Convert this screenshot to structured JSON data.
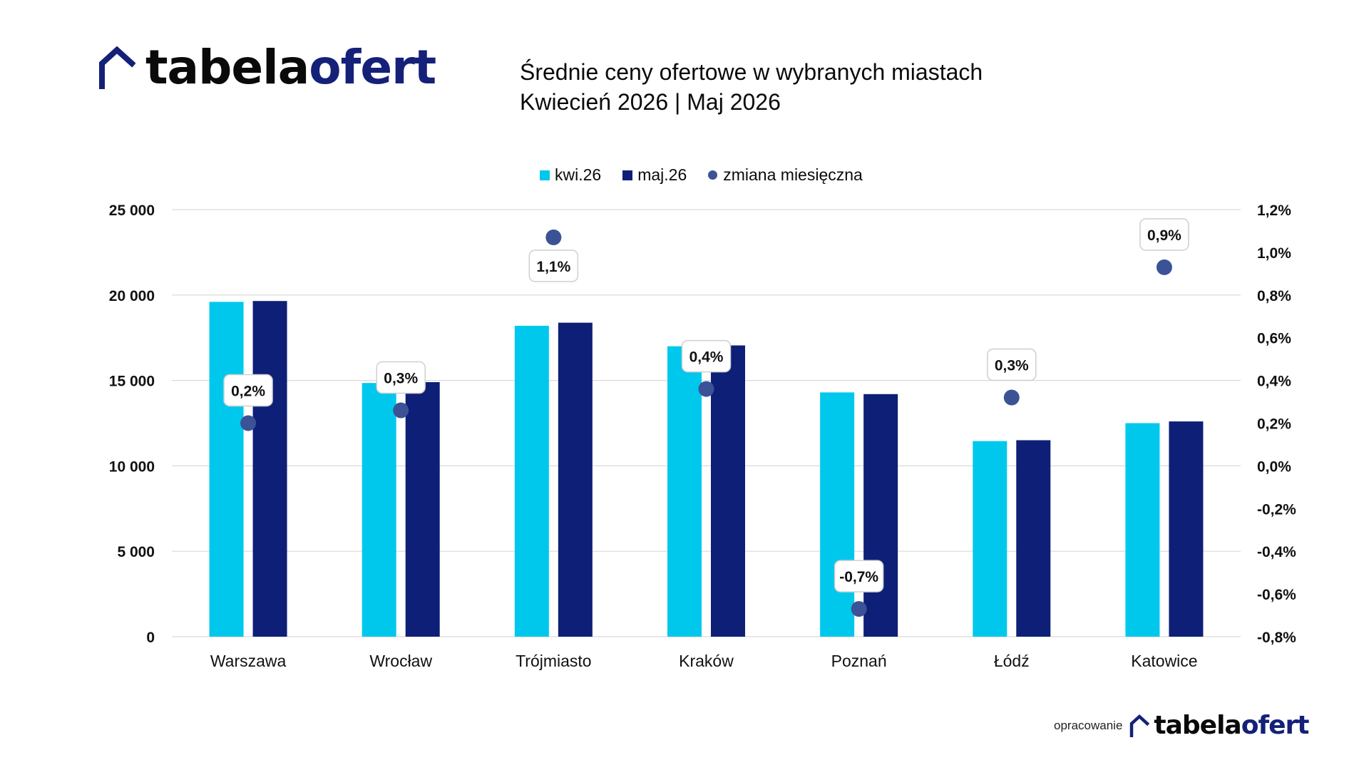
{
  "brand": {
    "part1": "tabela",
    "part2": "ofert",
    "dark_color": "#0a0a0a",
    "brand_color": "#152178"
  },
  "title": {
    "line1": "Średnie ceny ofertowe w wybranych miastach",
    "line2": "Kwiecień  2026 | Maj 2026"
  },
  "footer": {
    "caption": "opracowanie"
  },
  "colors": {
    "series_kwi": "#00c8ec",
    "series_maj": "#0e1f77",
    "marker": "#3b5296",
    "grid": "#d9d9d9"
  },
  "chart_data": {
    "type": "bar",
    "categories": [
      "Warszawa",
      "Wrocław",
      "Trójmiasto",
      "Kraków",
      "Poznań",
      "Łódź",
      "Katowice"
    ],
    "series": [
      {
        "name": "kwi.26",
        "axis": "left",
        "values": [
          19600,
          14850,
          18200,
          17000,
          14300,
          11450,
          12500
        ]
      },
      {
        "name": "maj.26",
        "axis": "left",
        "values": [
          19650,
          14900,
          18380,
          17050,
          14200,
          11500,
          12600
        ]
      }
    ],
    "change_series": {
      "name": "zmiana miesięczna",
      "axis": "right",
      "marker": "dot",
      "values": [
        0.2,
        0.26,
        1.07,
        0.36,
        -0.67,
        0.32,
        0.93
      ],
      "labels": [
        "0,2%",
        "0,3%",
        "1,1%",
        "0,4%",
        "-0,7%",
        "0,3%",
        "0,9%"
      ],
      "label_positions": [
        "above",
        "above",
        "below",
        "above",
        "above",
        "above",
        "above"
      ]
    },
    "left_axis": {
      "ylim": [
        0,
        25000
      ],
      "ticks": [
        0,
        5000,
        10000,
        15000,
        20000,
        25000
      ],
      "tick_labels": [
        "0",
        "5 000",
        "10 000",
        "15 000",
        "20 000",
        "25 000"
      ]
    },
    "right_axis": {
      "ylim": [
        -0.8,
        1.2
      ],
      "ticks": [
        -0.8,
        -0.6,
        -0.4,
        -0.2,
        0.0,
        0.2,
        0.4,
        0.6,
        0.8,
        1.0,
        1.2
      ],
      "tick_labels": [
        "-0,8%",
        "-0,6%",
        "-0,4%",
        "-0,2%",
        "0,0%",
        "0,2%",
        "0,4%",
        "0,6%",
        "0,8%",
        "1,0%",
        "1,2%"
      ]
    },
    "grid": true,
    "legend_position": "top-center"
  }
}
